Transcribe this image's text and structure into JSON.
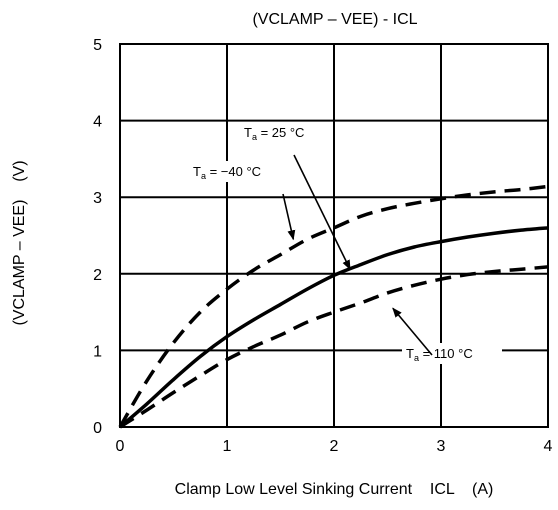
{
  "chart_data": {
    "type": "line",
    "title": "(VCLAMP – VEE) - ICL",
    "xlabel": "Clamp Low Level Sinking Current    ICL    (A)",
    "ylabel": "(VCLAMP – VEE)    (V)",
    "xlim": [
      0,
      4
    ],
    "ylim": [
      0,
      5
    ],
    "x_ticks": [
      "0",
      "1",
      "2",
      "3",
      "4"
    ],
    "y_ticks": [
      "0",
      "1",
      "2",
      "3",
      "4",
      "5"
    ],
    "grid": true,
    "series": [
      {
        "name": "Ta = −40 °C",
        "style": "dashed",
        "x": [
          0,
          0.25,
          0.5,
          0.75,
          1.0,
          1.25,
          1.5,
          1.75,
          2.0,
          2.25,
          2.5,
          2.75,
          3.0,
          3.25,
          3.5,
          3.75,
          4.0
        ],
        "values": [
          0,
          0.6,
          1.1,
          1.5,
          1.8,
          2.05,
          2.25,
          2.45,
          2.6,
          2.75,
          2.85,
          2.92,
          2.98,
          3.03,
          3.07,
          3.1,
          3.14
        ]
      },
      {
        "name": "Ta = 25 °C",
        "style": "solid",
        "x": [
          0,
          0.25,
          0.5,
          0.75,
          1.0,
          1.25,
          1.5,
          1.75,
          2.0,
          2.25,
          2.5,
          2.75,
          3.0,
          3.25,
          3.5,
          3.75,
          4.0
        ],
        "values": [
          0,
          0.3,
          0.62,
          0.92,
          1.18,
          1.4,
          1.6,
          1.8,
          1.98,
          2.12,
          2.25,
          2.35,
          2.42,
          2.48,
          2.53,
          2.57,
          2.6
        ]
      },
      {
        "name": "Ta = 110 °C",
        "style": "dashed",
        "x": [
          0,
          0.25,
          0.5,
          0.75,
          1.0,
          1.25,
          1.5,
          1.75,
          2.0,
          2.25,
          2.5,
          2.75,
          3.0,
          3.25,
          3.5,
          3.75,
          4.0
        ],
        "values": [
          0,
          0.22,
          0.45,
          0.67,
          0.88,
          1.05,
          1.2,
          1.37,
          1.5,
          1.62,
          1.75,
          1.85,
          1.93,
          1.99,
          2.03,
          2.06,
          2.09
        ]
      }
    ],
    "annotations": [
      {
        "label": "Ta = −40 °C",
        "sub": "a",
        "prefix": "T",
        "rest": " = −40 °C",
        "points_to_series": 0
      },
      {
        "label": "Ta = 25 °C",
        "sub": "a",
        "prefix": "T",
        "rest": " = 25 °C",
        "points_to_series": 1
      },
      {
        "label": "Ta = 110 °C",
        "sub": "a",
        "prefix": "T",
        "rest": " = 110 °C",
        "points_to_series": 2
      }
    ]
  }
}
